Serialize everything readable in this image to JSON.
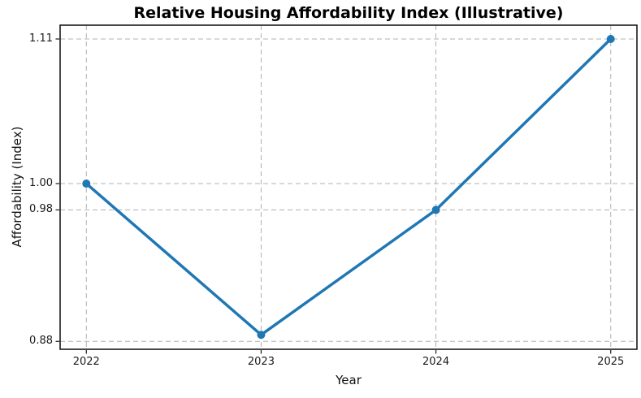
{
  "chart_data": {
    "type": "line",
    "title": "Relative Housing Affordability Index (Illustrative)",
    "xlabel": "Year",
    "ylabel": "Affordability (Index)",
    "x": [
      2022,
      2023,
      2024,
      2025
    ],
    "xtick_labels": [
      "2022",
      "2023",
      "2024",
      "2025"
    ],
    "series": [
      {
        "name": "affordability-index",
        "values": [
          1.0,
          0.885,
          0.98,
          1.11
        ],
        "color": "#1f77b4",
        "line_width": 3.5,
        "marker": "circle",
        "marker_radius": 5
      }
    ],
    "yticks": [
      0.88,
      0.98,
      1.0,
      1.11
    ],
    "ytick_labels": [
      "0.88",
      "0.98",
      "1.00",
      "1.11"
    ],
    "xlim": [
      2021.85,
      2025.15
    ],
    "ylim": [
      0.874,
      1.1205
    ],
    "grid": true,
    "grid_style": "dashed",
    "grid_color": "#b0b0b0",
    "spine_color": "#1a1a1a",
    "tick_color": "#1a1a1a",
    "background": "#ffffff",
    "legend": "none"
  }
}
